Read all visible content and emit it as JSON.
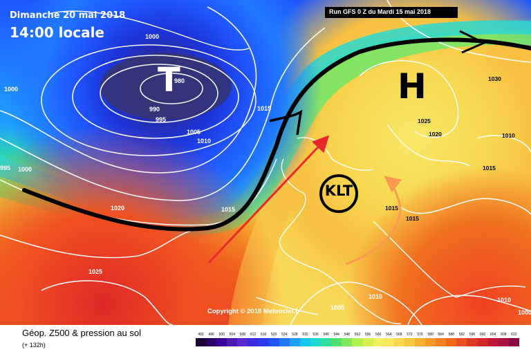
{
  "header": {
    "date": "Dimanche 20 mai 2018",
    "time": "14:00 locale",
    "run": "Run GFS 0 Z du Mardi 15 mai 2018"
  },
  "symbols": {
    "low": "T",
    "high": "H",
    "station": "KLT"
  },
  "copyright": "Copyright © 2018 Meteociel.fr",
  "legend": {
    "title": "Géop. Z500 & pression au sol",
    "subtitle": "(+ 132h)",
    "scale_values": [
      "492",
      "496",
      "500",
      "504",
      "508",
      "512",
      "516",
      "520",
      "524",
      "528",
      "532",
      "536",
      "540",
      "544",
      "548",
      "552",
      "556",
      "560",
      "564",
      "568",
      "572",
      "576",
      "580",
      "584",
      "588",
      "592",
      "596",
      "600",
      "604",
      "608",
      "612"
    ],
    "scale_colors": [
      "#1a0033",
      "#2b0066",
      "#3d0099",
      "#4b1ab3",
      "#5a2ad0",
      "#3b2ae0",
      "#2b3cf0",
      "#1f55ff",
      "#1f78ff",
      "#1fa0ff",
      "#18c4f0",
      "#22d8d0",
      "#2ee0a0",
      "#50e070",
      "#80e858",
      "#b0f050",
      "#d8f050",
      "#f0f060",
      "#f8e860",
      "#f8d850",
      "#f8c840",
      "#f8b030",
      "#f89828",
      "#f88020",
      "#f06818",
      "#e85020",
      "#e03828",
      "#d02828",
      "#c01838",
      "#a81040",
      "#8a0040"
    ]
  },
  "pressure_labels": [
    {
      "id": "p1000a",
      "text": "1000"
    },
    {
      "id": "p1000b",
      "text": "1000"
    },
    {
      "id": "p1000c",
      "text": "1000"
    },
    {
      "id": "p980",
      "text": "980"
    },
    {
      "id": "p990",
      "text": "990"
    },
    {
      "id": "p995a",
      "text": "995"
    },
    {
      "id": "p995b",
      "text": "995"
    },
    {
      "id": "p1005a",
      "text": "1005"
    },
    {
      "id": "p1010a",
      "text": "1010"
    },
    {
      "id": "p1015a",
      "text": "1015"
    },
    {
      "id": "p1020a",
      "text": "1020"
    },
    {
      "id": "p1025a",
      "text": "1025"
    },
    {
      "id": "p1015b",
      "text": "1015"
    },
    {
      "id": "p1015c",
      "text": "1015"
    },
    {
      "id": "p1030",
      "text": "1030"
    },
    {
      "id": "p1025b",
      "text": "1025"
    },
    {
      "id": "p1020b",
      "text": "1020"
    },
    {
      "id": "p1010b",
      "text": "1010"
    },
    {
      "id": "p1015d",
      "text": "1015"
    },
    {
      "id": "p1015e",
      "text": "1015"
    },
    {
      "id": "p1010c",
      "text": "1010"
    },
    {
      "id": "p1005b",
      "text": "1005"
    },
    {
      "id": "p1010d",
      "text": "1010"
    },
    {
      "id": "p1000d",
      "text": "1000"
    }
  ],
  "colors": {
    "jet_stream": "#000000",
    "arrow_red": "#e8282a",
    "arrow_orange": "#f89a50"
  }
}
